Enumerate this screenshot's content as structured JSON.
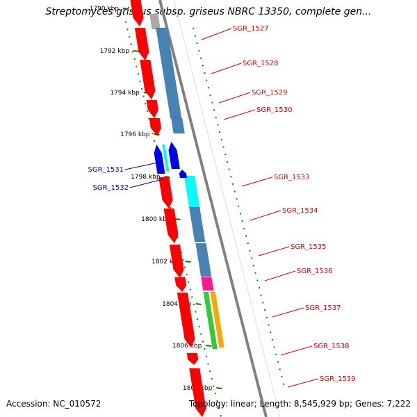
{
  "title": "Streptomyces griseus subsp. griseus NBRC 13350, complete gen...",
  "footer": {
    "accession": "Accession: NC_010572",
    "topology": "Topology: linear; Length: 8,545,929 bp; Genes: 7,222"
  },
  "ruler": [
    "1790 kbp",
    "1792 kbp",
    "1794 kbp",
    "1796 kbp",
    "1798 kbp",
    "1800 kbp",
    "1802 kbp",
    "1804 kbp",
    "1806 kbp",
    "1808 kbp"
  ],
  "gene_labels": {
    "SGR_1527": "SGR_1527",
    "SGR_1528": "SGR_1528",
    "SGR_1529": "SGR_1529",
    "SGR_1530": "SGR_1530",
    "SGR_1531": "SGR_1531",
    "SGR_1532": "SGR_1532",
    "SGR_1533": "SGR_1533",
    "SGR_1534": "SGR_1534",
    "SGR_1535": "SGR_1535",
    "SGR_1536": "SGR_1536",
    "SGR_1537": "SGR_1537",
    "SGR_1538": "SGR_1538",
    "SGR_1539": "SGR_1539"
  },
  "colors": {
    "forward_gene": "#ff0000",
    "reverse_gene": "#0000ee",
    "track_steelblue": "#4682b4",
    "track_cyan": "#00ffff",
    "track_magenta": "#ff1493",
    "track_green": "#32cd32",
    "track_orange": "#ffa500",
    "ruler": "#008000",
    "backbone": "#808080",
    "forward_label": "#cc0000",
    "reverse_label": "#000099"
  }
}
